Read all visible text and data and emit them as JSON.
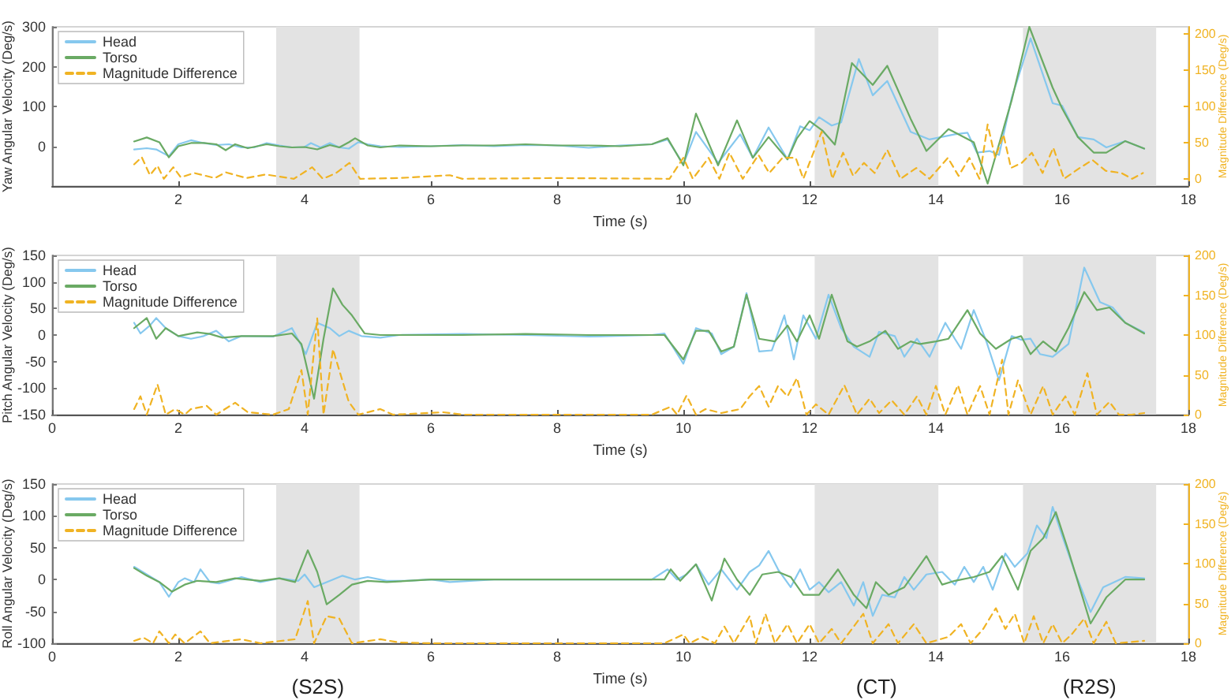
{
  "chart_data": [
    {
      "type": "line",
      "xlabel": "Time (s)",
      "ylabel": "Yaw Angular Velocity (Deg/s)",
      "y2label": "Magnitude Difference (Deg/s)",
      "xlim": [
        0,
        18
      ],
      "xticks": [
        2,
        4,
        6,
        8,
        10,
        12,
        14,
        16,
        18
      ],
      "ylim": [
        -100,
        300
      ],
      "yticks": [
        0,
        100,
        200,
        300
      ],
      "y2lim": [
        -10,
        210
      ],
      "y2ticks": [
        0,
        50,
        100,
        150,
        200
      ],
      "legend": "top left",
      "bands": [
        {
          "axis": "x",
          "from": 3.55,
          "to": 4.87,
          "color": "#e3e3e3"
        },
        {
          "axis": "x",
          "from": 12.08,
          "to": 14.04,
          "color": "#e3e3e3"
        },
        {
          "axis": "x",
          "from": 15.38,
          "to": 17.49,
          "color": "#e3e3e3"
        }
      ],
      "series": [
        {
          "name": "Head",
          "color": "#86c8ee",
          "x": [
            1.3,
            1.5,
            1.65,
            1.85,
            2.0,
            2.2,
            2.4,
            2.6,
            2.8,
            3.0,
            3.2,
            3.4,
            3.6,
            3.8,
            4.0,
            4.1,
            4.25,
            4.4,
            4.55,
            4.7,
            4.85,
            5.0,
            5.2,
            5.5,
            6.0,
            6.5,
            7.0,
            7.5,
            8.0,
            8.5,
            9.0,
            9.5,
            9.75,
            10.0,
            10.2,
            10.55,
            10.9,
            11.1,
            11.35,
            11.65,
            11.85,
            12.0,
            12.15,
            12.35,
            12.5,
            12.78,
            13.0,
            13.23,
            13.6,
            13.9,
            14.3,
            14.5,
            14.65,
            14.85,
            15.0,
            15.2,
            15.5,
            15.85,
            16.0,
            16.25,
            16.5,
            16.7,
            17.0,
            17.3
          ],
          "values": [
            -8,
            -5,
            -8,
            -25,
            5,
            15,
            8,
            3,
            5,
            -3,
            -3,
            8,
            2,
            -3,
            -2,
            8,
            -3,
            8,
            -3,
            -6,
            10,
            5,
            0,
            -2,
            0,
            3,
            0,
            3,
            2,
            -4,
            2,
            5,
            17,
            -45,
            36,
            -42,
            30,
            -29,
            47,
            -33,
            50,
            40,
            73,
            52,
            60,
            219,
            128,
            164,
            36,
            17,
            30,
            34,
            -16,
            -12,
            -22,
            121,
            271,
            108,
            102,
            23,
            17,
            -3,
            13,
            -6
          ]
        },
        {
          "name": "Torso",
          "color": "#6aaa64",
          "x": [
            1.3,
            1.5,
            1.7,
            1.85,
            2.0,
            2.2,
            2.4,
            2.6,
            2.75,
            2.9,
            3.1,
            3.4,
            3.6,
            3.8,
            4.0,
            4.2,
            4.4,
            4.55,
            4.7,
            4.8,
            5.0,
            5.2,
            5.5,
            6.0,
            6.5,
            7.0,
            7.5,
            8.0,
            8.5,
            9.0,
            9.5,
            9.75,
            10.0,
            10.2,
            10.55,
            10.85,
            11.1,
            11.35,
            11.65,
            11.8,
            12.0,
            12.2,
            12.4,
            12.67,
            13.0,
            13.23,
            13.6,
            13.85,
            14.2,
            14.6,
            14.82,
            15.2,
            15.48,
            15.85,
            16.0,
            16.25,
            16.5,
            16.7,
            17.0,
            17.3
          ],
          "values": [
            12,
            22,
            10,
            -28,
            0,
            8,
            8,
            5,
            -10,
            5,
            -5,
            5,
            0,
            -3,
            -2,
            -8,
            3,
            -3,
            10,
            20,
            2,
            -3,
            2,
            0,
            2,
            2,
            5,
            2,
            2,
            0,
            5,
            20,
            -48,
            82,
            -48,
            65,
            -29,
            23,
            -33,
            20,
            63,
            40,
            4,
            209,
            154,
            202,
            69,
            -12,
            43,
            10,
            -94,
            115,
            300,
            147,
            95,
            23,
            -16,
            -16,
            13,
            -6
          ]
        },
        {
          "name": "Magnitude Difference",
          "color": "#f0b323",
          "axis": "y2",
          "line_style": "dashed",
          "x": [
            1.3,
            1.42,
            1.55,
            1.67,
            1.77,
            1.92,
            2.04,
            2.25,
            2.58,
            2.75,
            3.08,
            3.38,
            3.83,
            4.12,
            4.29,
            4.5,
            4.71,
            4.88,
            5.5,
            6.3,
            6.5,
            8.0,
            9.78,
            10.0,
            10.15,
            10.4,
            10.57,
            10.73,
            10.94,
            11.19,
            11.36,
            11.57,
            11.78,
            11.9,
            12.19,
            12.36,
            12.53,
            12.69,
            12.86,
            13.03,
            13.23,
            13.44,
            13.69,
            13.9,
            14.19,
            14.36,
            14.53,
            14.69,
            14.82,
            14.94,
            15.07,
            15.19,
            15.36,
            15.52,
            15.69,
            15.86,
            16.03,
            16.28,
            16.48,
            16.69,
            16.94,
            17.11,
            17.28
          ],
          "values": [
            20,
            30,
            5,
            18,
            0,
            16,
            2,
            8,
            1,
            9,
            1,
            6,
            0,
            16,
            0,
            8,
            22,
            0,
            1,
            5,
            0,
            1,
            0,
            29,
            0,
            29,
            0,
            36,
            0,
            33,
            8,
            29,
            29,
            0,
            65,
            0,
            36,
            4,
            22,
            8,
            40,
            0,
            15,
            0,
            29,
            4,
            29,
            0,
            75,
            29,
            61,
            15,
            22,
            36,
            8,
            43,
            0,
            15,
            26,
            11,
            8,
            0,
            8
          ]
        }
      ]
    },
    {
      "type": "line",
      "xlabel": "Time (s)",
      "ylabel": "Pitch Angular Velocity (Deg/s)",
      "y2label": "Magnitude Difference (Deg/s)",
      "xlim": [
        0,
        18
      ],
      "xticks": [
        0,
        2,
        4,
        6,
        8,
        10,
        12,
        14,
        16,
        18
      ],
      "ylim": [
        -150,
        150
      ],
      "yticks": [
        -150,
        -100,
        -50,
        0,
        50,
        100,
        150
      ],
      "y2lim": [
        0,
        200
      ],
      "y2ticks": [
        0,
        50,
        100,
        150,
        200
      ],
      "legend": "top left",
      "bands": [
        {
          "axis": "x",
          "from": 3.55,
          "to": 4.87,
          "color": "#e3e3e3"
        },
        {
          "axis": "x",
          "from": 12.08,
          "to": 14.04,
          "color": "#e3e3e3"
        },
        {
          "axis": "x",
          "from": 15.38,
          "to": 17.49,
          "color": "#e3e3e3"
        }
      ],
      "series": [
        {
          "name": "Head",
          "color": "#86c8ee",
          "x": [
            1.3,
            1.4,
            1.55,
            1.65,
            1.8,
            2.0,
            2.2,
            2.4,
            2.6,
            2.8,
            3.0,
            3.5,
            3.8,
            4.02,
            4.2,
            4.4,
            4.55,
            4.7,
            4.9,
            5.2,
            5.5,
            6.5,
            7.5,
            8.5,
            9.5,
            9.7,
            10.0,
            10.2,
            10.45,
            10.6,
            10.8,
            11.0,
            11.2,
            11.4,
            11.6,
            11.75,
            11.9,
            12.1,
            12.3,
            12.5,
            12.7,
            12.95,
            13.1,
            13.35,
            13.5,
            13.7,
            13.9,
            14.05,
            14.15,
            14.3,
            14.4,
            14.6,
            14.8,
            15.0,
            15.2,
            15.35,
            15.5,
            15.65,
            15.85,
            16.1,
            16.35,
            16.6,
            16.8,
            17.0,
            17.3
          ],
          "values": [
            23,
            3,
            18,
            32,
            13,
            -2,
            -7,
            -2,
            8,
            -12,
            -2,
            -3,
            13,
            -36,
            23,
            13,
            -2,
            8,
            -2,
            -5,
            0,
            2,
            0,
            -3,
            0,
            3,
            -54,
            13,
            3,
            -36,
            -22,
            79,
            -31,
            -29,
            37,
            -46,
            37,
            -7,
            76,
            13,
            -22,
            -41,
            6,
            -2,
            -41,
            -7,
            -41,
            -2,
            23,
            -7,
            -26,
            47,
            -12,
            -85,
            -2,
            -9,
            -7,
            -36,
            -41,
            -17,
            127,
            62,
            52,
            23,
            5
          ]
        },
        {
          "name": "Torso",
          "color": "#6aaa64",
          "x": [
            1.3,
            1.5,
            1.65,
            1.8,
            2.0,
            2.3,
            2.5,
            2.7,
            3.0,
            3.5,
            3.8,
            3.95,
            4.15,
            4.3,
            4.45,
            4.6,
            4.75,
            4.95,
            5.2,
            6.5,
            7.5,
            8.5,
            9.7,
            10.0,
            10.2,
            10.4,
            10.6,
            10.8,
            11.0,
            11.2,
            11.45,
            11.65,
            11.8,
            12.0,
            12.15,
            12.35,
            12.6,
            12.75,
            12.95,
            13.2,
            13.4,
            13.6,
            13.75,
            14.0,
            14.2,
            14.5,
            14.7,
            14.95,
            15.2,
            15.35,
            15.5,
            15.7,
            15.9,
            16.1,
            16.35,
            16.55,
            16.75,
            17.0,
            17.3
          ],
          "values": [
            13,
            32,
            -7,
            13,
            -2,
            5,
            2,
            -5,
            -2,
            -2,
            3,
            -17,
            -120,
            -7,
            88,
            57,
            37,
            3,
            0,
            0,
            2,
            0,
            0,
            -46,
            8,
            8,
            -31,
            -22,
            76,
            -7,
            -12,
            18,
            -12,
            37,
            -7,
            76,
            -12,
            -22,
            -12,
            8,
            -26,
            -12,
            -17,
            -12,
            -7,
            47,
            3,
            -26,
            -7,
            -2,
            -36,
            -12,
            -31,
            13,
            81,
            47,
            52,
            23,
            3
          ]
        },
        {
          "name": "Magnitude Difference",
          "color": "#f0b323",
          "axis": "y2",
          "line_style": "dashed",
          "x": [
            1.3,
            1.4,
            1.5,
            1.67,
            1.8,
            1.95,
            2.1,
            2.2,
            2.45,
            2.6,
            2.9,
            3.1,
            3.5,
            3.75,
            3.95,
            4.05,
            4.2,
            4.3,
            4.45,
            4.7,
            4.85,
            5.2,
            5.4,
            6.2,
            6.5,
            9.5,
            9.8,
            9.9,
            10.05,
            10.2,
            10.35,
            10.6,
            10.9,
            11.05,
            11.2,
            11.35,
            11.5,
            11.65,
            11.8,
            11.95,
            12.1,
            12.3,
            12.55,
            12.75,
            12.95,
            13.1,
            13.3,
            13.5,
            13.7,
            13.85,
            14.0,
            14.15,
            14.35,
            14.5,
            14.7,
            14.85,
            15.05,
            15.15,
            15.3,
            15.5,
            15.7,
            15.85,
            16.05,
            16.2,
            16.4,
            16.55,
            16.75,
            16.9,
            17.1,
            17.3
          ],
          "values": [
            7,
            23,
            0,
            38,
            0,
            7,
            0,
            7,
            11,
            0,
            15,
            3,
            0,
            7,
            56,
            0,
            121,
            0,
            82,
            16,
            0,
            7,
            0,
            3,
            0,
            0,
            10,
            0,
            24,
            0,
            7,
            2,
            7,
            23,
            36,
            10,
            36,
            23,
            46,
            0,
            13,
            0,
            37,
            0,
            20,
            2,
            18,
            0,
            23,
            0,
            36,
            0,
            37,
            0,
            36,
            0,
            69,
            0,
            43,
            0,
            36,
            0,
            23,
            0,
            52,
            0,
            16,
            0,
            0,
            2
          ]
        }
      ]
    },
    {
      "type": "line",
      "xlabel": "Time (s)",
      "ylabel": "Roll Angular Velocity (Deg/s)",
      "y2label": "Magnitude Difference (Deg/s)",
      "xlim": [
        0,
        18
      ],
      "xticks": [
        0,
        2,
        4,
        6,
        8,
        10,
        12,
        14,
        16,
        18
      ],
      "ylim": [
        -100,
        150
      ],
      "yticks": [
        -100,
        -50,
        0,
        50,
        100,
        150
      ],
      "y2lim": [
        0,
        200
      ],
      "y2ticks": [
        0,
        50,
        100,
        150,
        200
      ],
      "legend": "top left",
      "bands": [
        {
          "axis": "x",
          "from": 3.55,
          "to": 4.87,
          "label": "(S2S)",
          "color": "#e3e3e3"
        },
        {
          "axis": "x",
          "from": 12.08,
          "to": 14.04,
          "label": "(CT)",
          "color": "#e3e3e3"
        },
        {
          "axis": "x",
          "from": 15.38,
          "to": 17.49,
          "label": "(R2S)",
          "color": "#e3e3e3"
        }
      ],
      "series": [
        {
          "name": "Head",
          "color": "#86c8ee",
          "x": [
            1.3,
            1.5,
            1.7,
            1.85,
            2.0,
            2.1,
            2.25,
            2.35,
            2.5,
            2.65,
            3.0,
            3.3,
            3.6,
            3.9,
            4.0,
            4.15,
            4.35,
            4.6,
            4.8,
            5.0,
            5.3,
            5.6,
            6.0,
            6.3,
            7.0,
            8.0,
            9.0,
            9.5,
            9.75,
            9.9,
            10.05,
            10.2,
            10.4,
            10.6,
            10.85,
            11.05,
            11.2,
            11.35,
            11.5,
            11.7,
            11.85,
            12.0,
            12.15,
            12.3,
            12.5,
            12.7,
            12.85,
            13.0,
            13.15,
            13.35,
            13.5,
            13.65,
            13.85,
            14.1,
            14.3,
            14.45,
            14.6,
            14.75,
            14.9,
            15.1,
            15.25,
            15.45,
            15.6,
            15.75,
            15.85,
            16.0,
            16.2,
            16.45,
            16.65,
            17.0,
            17.3
          ],
          "values": [
            20,
            8,
            -4,
            -27,
            -4,
            2,
            -4,
            16,
            -4,
            -6,
            4,
            -4,
            2,
            -2,
            8,
            -12,
            -4,
            6,
            0,
            4,
            -2,
            -2,
            0,
            -4,
            0,
            0,
            0,
            0,
            16,
            0,
            8,
            24,
            -8,
            16,
            -16,
            12,
            22,
            45,
            16,
            -12,
            16,
            -16,
            -4,
            -20,
            -4,
            -41,
            -4,
            -57,
            -24,
            -28,
            4,
            -16,
            8,
            12,
            -8,
            20,
            -4,
            20,
            -16,
            41,
            20,
            41,
            85,
            65,
            114,
            69,
            12,
            -51,
            -12,
            4,
            2
          ]
        },
        {
          "name": "Torso",
          "color": "#6aaa64",
          "x": [
            1.3,
            1.5,
            1.7,
            1.9,
            2.1,
            2.3,
            2.6,
            2.9,
            3.3,
            3.6,
            3.85,
            4.05,
            4.2,
            4.35,
            4.55,
            4.75,
            5.0,
            5.3,
            6.0,
            7.0,
            8.0,
            9.0,
            9.7,
            9.8,
            9.95,
            10.2,
            10.45,
            10.65,
            10.85,
            11.05,
            11.25,
            11.5,
            11.7,
            11.9,
            12.15,
            12.45,
            12.7,
            12.9,
            13.05,
            13.25,
            13.5,
            13.85,
            14.1,
            14.3,
            14.6,
            14.85,
            15.05,
            15.3,
            15.5,
            15.7,
            15.9,
            16.1,
            16.3,
            16.45,
            16.7,
            17.0,
            17.3
          ],
          "values": [
            18,
            6,
            -4,
            -19,
            -8,
            -2,
            -4,
            2,
            -2,
            2,
            -4,
            46,
            12,
            -39,
            -24,
            -8,
            -2,
            -4,
            0,
            0,
            0,
            0,
            0,
            16,
            -2,
            24,
            -33,
            33,
            0,
            -24,
            8,
            12,
            4,
            -24,
            -24,
            16,
            -24,
            -45,
            -4,
            -24,
            -12,
            37,
            -8,
            -2,
            4,
            12,
            37,
            -16,
            45,
            65,
            106,
            45,
            -20,
            -69,
            -28,
            0,
            0
          ]
        },
        {
          "name": "Magnitude Difference",
          "color": "#f0b323",
          "axis": "y2",
          "line_style": "dashed",
          "x": [
            1.3,
            1.45,
            1.6,
            1.7,
            1.85,
            1.95,
            2.1,
            2.35,
            2.5,
            3.0,
            3.3,
            3.85,
            4.05,
            4.15,
            4.35,
            4.55,
            4.75,
            5.2,
            5.5,
            6.0,
            9.7,
            10.0,
            10.1,
            10.3,
            10.5,
            10.65,
            10.8,
            11.05,
            11.15,
            11.3,
            11.45,
            11.65,
            11.8,
            12.0,
            12.15,
            12.35,
            12.5,
            12.85,
            13.0,
            13.25,
            13.4,
            13.65,
            13.85,
            14.2,
            14.4,
            14.55,
            14.75,
            14.95,
            15.1,
            15.25,
            15.4,
            15.55,
            15.7,
            15.85,
            16.0,
            16.15,
            16.35,
            16.5,
            16.7,
            16.85,
            17.3
          ],
          "values": [
            3,
            7,
            0,
            15,
            0,
            11,
            0,
            15,
            0,
            5,
            0,
            5,
            53,
            0,
            34,
            31,
            0,
            5,
            1,
            0,
            0,
            11,
            0,
            8,
            0,
            21,
            0,
            34,
            0,
            37,
            0,
            24,
            0,
            24,
            0,
            18,
            0,
            37,
            0,
            24,
            0,
            24,
            0,
            8,
            24,
            0,
            18,
            44,
            18,
            37,
            0,
            34,
            0,
            24,
            0,
            11,
            31,
            0,
            27,
            0,
            3
          ]
        }
      ]
    }
  ]
}
